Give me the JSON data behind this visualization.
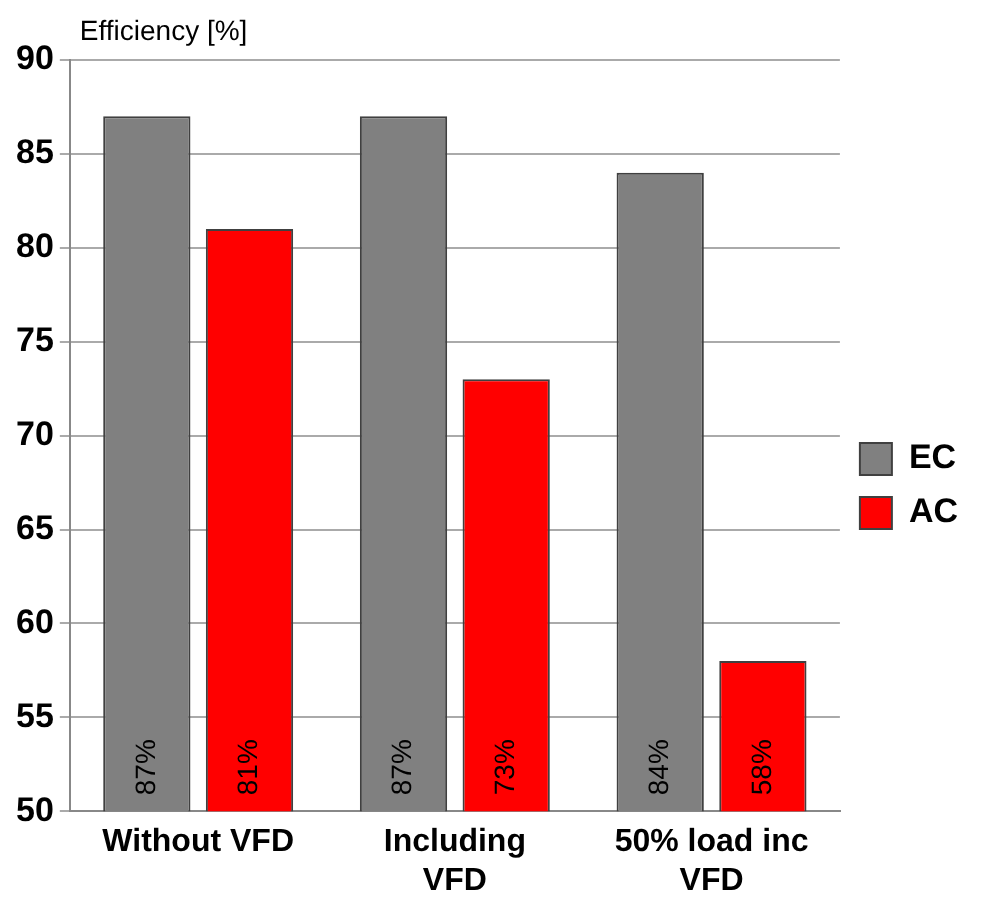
{
  "chart_data": {
    "type": "bar",
    "ylabel": "Efficiency [%]",
    "categories": [
      "Without VFD",
      "Including\nVFD",
      "50% load inc\nVFD"
    ],
    "series": [
      {
        "name": "EC",
        "color": "#808080",
        "values": [
          87,
          87,
          84
        ],
        "value_labels": [
          "87%",
          "87%",
          "84%"
        ]
      },
      {
        "name": "AC",
        "color": "#ff0000",
        "values": [
          81,
          73,
          58
        ],
        "value_labels": [
          "81%",
          "73%",
          "58%"
        ]
      }
    ],
    "ylim": [
      50,
      90
    ],
    "yticks": [
      50,
      55,
      60,
      65,
      70,
      75,
      80,
      85,
      90
    ],
    "grid": "y",
    "legend": "right"
  }
}
